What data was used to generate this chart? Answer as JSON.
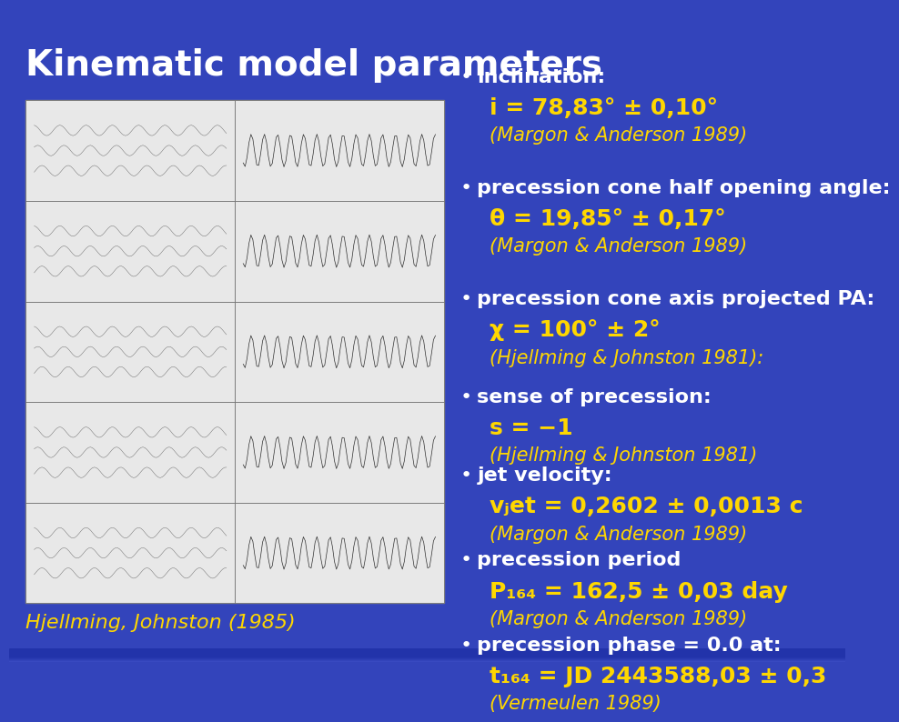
{
  "title": "Kinematic model parameters",
  "title_color": "#FFFFFF",
  "title_fontsize": 28,
  "title_bold": true,
  "background_color_top": "#3344BB",
  "background_color_bottom": "#1122AA",
  "caption": "Hjellming, Johnston (1985)",
  "caption_color": "#FFD700",
  "caption_fontsize": 16,
  "bullet_color": "#FFFFFF",
  "value_color": "#FFD700",
  "italic_color": "#FFD700",
  "bullet_fontsize": 16,
  "value_fontsize": 18,
  "bullets": [
    {
      "label": "inclination:",
      "value": "i = 78,83° ± 0,10°",
      "ref": "(Margon & Anderson 1989)"
    },
    {
      "label": "precession cone half opening angle:",
      "value": "θ = 19,85° ± 0,17°",
      "ref": "(Margon & Anderson 1989)"
    },
    {
      "label": "precession cone axis projected PA:",
      "value": "χ = 100° ± 2°",
      "ref": "(Hjellming & Johnston 1981):"
    },
    {
      "label": "sense of precession:",
      "value": "s = −1",
      "ref": "(Hjellming & Johnston 1981)"
    },
    {
      "label": "jet velocity:",
      "value": "vⱼet = 0,2602 ± 0,0013 c",
      "ref": "(Margon & Anderson 1989)"
    },
    {
      "label": "precession period",
      "value": "P₁₆₄ = 162,5 ± 0,03 day",
      "ref": "(Margon & Anderson 1989)"
    },
    {
      "label": "precession phase = 0.0 at:",
      "value": "t₁₆₄ = JD 2443588,03 ± 0,3",
      "ref": "(Vermeulen 1989)"
    }
  ]
}
